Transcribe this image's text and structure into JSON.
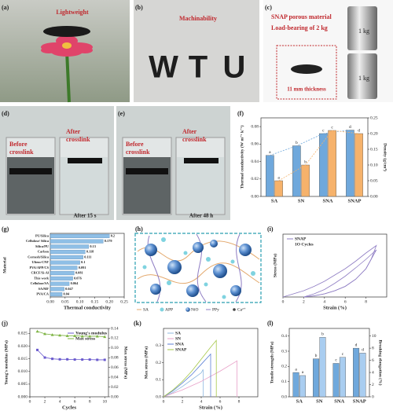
{
  "panels": [
    "(a)",
    "(b)",
    "(c)",
    "(d)",
    "(e)",
    "(f)",
    "(g)",
    "(h)",
    "(i)",
    "(j)",
    "(k)",
    "(l)"
  ],
  "photos": {
    "a": {
      "caption": "Lightweight"
    },
    "b": {
      "caption": "Machinability",
      "shapes": [
        "W",
        "T",
        "U"
      ]
    },
    "c": {
      "caption": [
        "SNAP porous material",
        "Load-bearing of 2 kg"
      ],
      "inset": "11 mm thickness",
      "weights": [
        "1 kg",
        "1 kg"
      ]
    },
    "d": {
      "left": [
        "Before",
        "crosslink"
      ],
      "right": [
        "After",
        "crosslink"
      ],
      "time": "After 15 s"
    },
    "e": {
      "left": [
        "Before",
        "crosslink"
      ],
      "right": [
        "After",
        "crosslink"
      ],
      "time": "After 48 h"
    }
  },
  "diagram": {
    "legend": [
      "SA",
      "APP",
      "NiO",
      "PPy",
      "Ca²⁺"
    ]
  },
  "chart_data": [
    {
      "type": "bar",
      "categories": [
        "SA",
        "SN",
        "SNA",
        "SNAP"
      ],
      "series": [
        {
          "color": "#6fa8dc",
          "values": [
            0.047,
            0.058,
            0.072,
            0.076
          ],
          "sig_labels": [
            "a",
            "b",
            "c",
            "d"
          ]
        },
        {
          "color": "#f6b26b",
          "axis": "y2",
          "values": [
            0.05,
            0.1,
            0.21,
            0.2
          ],
          "sig_labels": [
            "a",
            "b",
            "c",
            "d"
          ]
        }
      ],
      "ylabel": "Thermal conductivity (W m⁻¹ k⁻¹)",
      "y2label": "Density (g/cm³)",
      "ylim": [
        0,
        0.09
      ],
      "yticks": [
        {
          "value": 0,
          "label": "0.00"
        },
        0.02,
        0.04,
        0.06,
        0.08
      ],
      "y2lim": [
        0,
        0.25
      ],
      "y2ticks": [
        {
          "value": 0,
          "label": "0.00"
        },
        0.05,
        {
          "value": 0.1,
          "label": "0.10"
        },
        0.15,
        {
          "value": 0.2,
          "label": "0.20"
        },
        0.25
      ],
      "connect": true,
      "y_color": "#3d78c0",
      "y2_color": "#e08a2e"
    },
    {
      "type": "hbar",
      "categories": [
        "PU/Silica",
        "Cellulose/ Silica",
        "Silica/PU",
        "Carbon",
        "Cornesh/Silica",
        "Ultem-CNF",
        "PVA/APP/CS",
        "CRCF/Si-Al",
        "This work",
        "Cellulose/SA",
        "SA/MF",
        "PVA/CA"
      ],
      "values": [
        0.2,
        0.179,
        0.13,
        0.118,
        0.111,
        0.1,
        0.091,
        0.081,
        0.076,
        0.064,
        0.047,
        0.04
      ],
      "color": "#8fbfe6",
      "xlabel": "Thermal conductivity",
      "ylabel": "Material",
      "xlim": [
        0,
        0.25
      ],
      "xticks": [
        {
          "value": 0,
          "label": "0.00"
        },
        0.05,
        {
          "value": 0.1,
          "label": "0.10"
        },
        0.15,
        {
          "value": 0.2,
          "label": "0.20"
        },
        0.25
      ]
    },
    {
      "type": "line",
      "series": [
        {
          "name": "SNAP",
          "color": "#8e7cc3",
          "x": [
            0,
            1,
            2,
            3,
            4,
            5,
            6,
            7,
            8,
            9,
            8.5,
            8,
            7,
            6,
            5,
            4,
            3,
            2
          ],
          "values": [
            0,
            0.008,
            0.016,
            0.027,
            0.04,
            0.056,
            0.072,
            0.091,
            0.112,
            0.131,
            0.096,
            0.072,
            0.045,
            0.027,
            0.016,
            0.008,
            0.003,
            0
          ]
        },
        {
          "color": "#8e7cc3",
          "x": [
            2,
            3,
            4,
            5,
            6,
            7,
            8,
            9,
            8,
            7,
            6,
            5,
            4,
            3,
            2
          ],
          "values": [
            0,
            0.008,
            0.019,
            0.035,
            0.053,
            0.074,
            0.096,
            0.12,
            0.072,
            0.045,
            0.027,
            0.016,
            0.008,
            0.003,
            0
          ]
        }
      ],
      "annotation": "1O Cycles",
      "xlabel": "Strain (%)",
      "ylabel": "Stress (MPa)",
      "xlim": [
        0,
        10
      ],
      "xticks": [
        0,
        2,
        4,
        6,
        8
      ],
      "ylim": [
        0,
        0.16
      ],
      "legend": "upper left"
    },
    {
      "type": "line",
      "x": [
        1,
        2,
        3,
        4,
        5,
        6,
        7,
        8,
        9,
        10
      ],
      "series": [
        {
          "name": "Young's modulus",
          "color": "#6a5acd",
          "marker": "square",
          "values": [
            0.0185,
            0.0155,
            0.015,
            0.0148,
            0.0148,
            0.0147,
            0.0147,
            0.0147,
            0.0146,
            0.0146
          ]
        },
        {
          "name": "Max stress",
          "color": "#7cb342",
          "marker": "triangle",
          "axis": "y2",
          "values": [
            0.134,
            0.129,
            0.127,
            0.126,
            0.125,
            0.125,
            0.124,
            0.124,
            0.124,
            0.123
          ]
        }
      ],
      "xlabel": "Cycles",
      "ylabel": "Young's modulus (MPa)",
      "y2label": "Max stress (MPa)",
      "xlim": [
        0,
        10.5
      ],
      "xticks": [
        0,
        2,
        4,
        6,
        8,
        10
      ],
      "ylim": [
        0,
        0.027
      ],
      "yticks": [
        {
          "value": 0,
          "label": "0.000"
        },
        0.005,
        {
          "value": 0.01,
          "label": "0.010"
        },
        0.015,
        {
          "value": 0.02,
          "label": "0.020"
        },
        0.025
      ],
      "y2lim": [
        0,
        0.14
      ],
      "y2ticks": [
        {
          "value": 0,
          "label": "0.00"
        },
        0.02,
        0.04,
        0.06,
        0.08,
        {
          "value": 0.1,
          "label": "0.10"
        },
        0.12,
        0.14
      ],
      "legend": "upper right",
      "y2_color": "#5e9a2a"
    },
    {
      "type": "line",
      "series": [
        {
          "name": "SA",
          "color": "#8fb8e0",
          "x": [
            0,
            1,
            2,
            3,
            4,
            4.2,
            4.2
          ],
          "values": [
            0,
            0.025,
            0.06,
            0.1,
            0.14,
            0.16,
            0
          ]
        },
        {
          "name": "SN",
          "color": "#e8a0c8",
          "x": [
            0,
            2,
            4,
            6,
            7.8,
            7.8
          ],
          "values": [
            0,
            0.04,
            0.09,
            0.15,
            0.21,
            0
          ]
        },
        {
          "name": "SNA",
          "color": "#5b7fd6",
          "x": [
            0,
            1,
            2,
            3,
            4,
            5,
            5
          ],
          "values": [
            0,
            0.035,
            0.08,
            0.13,
            0.19,
            0.25,
            0
          ]
        },
        {
          "name": "SNAP",
          "color": "#a6c84a",
          "x": [
            0,
            1,
            2,
            3,
            4,
            5,
            5.6,
            5.6
          ],
          "values": [
            0,
            0.04,
            0.09,
            0.15,
            0.22,
            0.29,
            0.33,
            0
          ]
        }
      ],
      "xlabel": "Strain (%)",
      "ylabel": "Max stress (MPa)",
      "xlim": [
        0,
        10
      ],
      "xticks": [
        0,
        2,
        4,
        6,
        8
      ],
      "ylim": [
        0,
        0.4
      ],
      "yticks": [
        {
          "value": 0,
          "label": "0.0"
        },
        0.1,
        0.2,
        0.3
      ],
      "legend": "upper left"
    },
    {
      "type": "bar",
      "categories": [
        "SA",
        "SN",
        "SNA",
        "SNAP"
      ],
      "series": [
        {
          "color": "#6fa8dc",
          "values": [
            0.16,
            0.25,
            0.22,
            0.32
          ],
          "sig_labels": [
            "a",
            "b",
            "c",
            "d"
          ]
        },
        {
          "color": "#a9cdf0",
          "axis": "y2",
          "values": [
            3.5,
            9.8,
            6.5,
            7.2
          ],
          "sig_labels": [
            "a",
            "b",
            "c",
            "d"
          ]
        }
      ],
      "ylabel": "Tensile strength (MPa)",
      "y2label": "Breaking elongation (%)",
      "ylim": [
        0,
        0.45
      ],
      "yticks": [
        {
          "value": 0,
          "label": "0.0"
        },
        0.1,
        0.2,
        0.3,
        0.4
      ],
      "y2lim": [
        0,
        11.25
      ],
      "y2ticks": [
        0,
        2,
        4,
        6,
        8,
        10
      ]
    }
  ]
}
